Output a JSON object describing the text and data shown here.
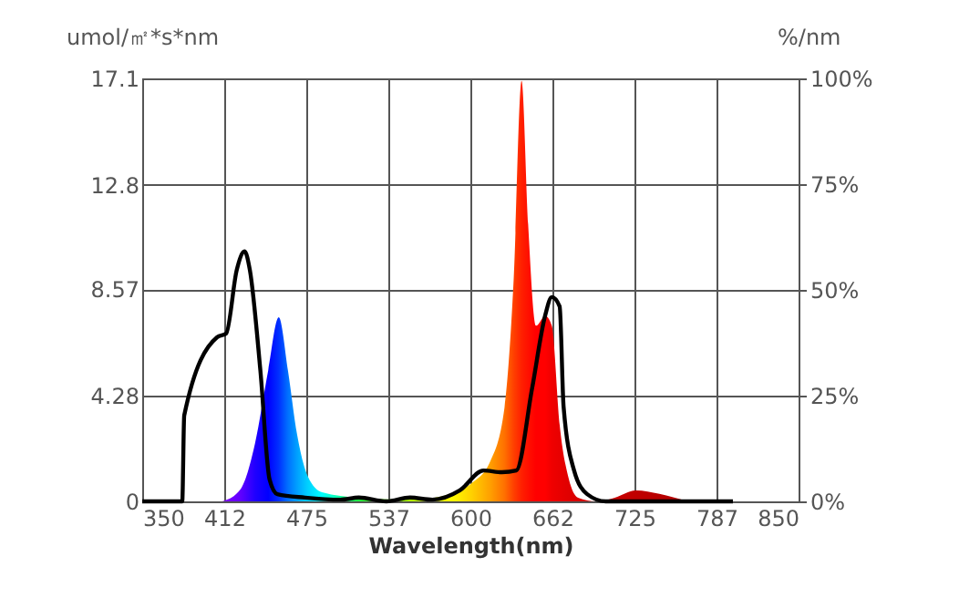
{
  "chart_data": {
    "type": "area",
    "xlabel": "Wavelength(nm)",
    "ylabel": "umol/㎡*s*nm",
    "y2label": "%/nm",
    "xlim": [
      350,
      850
    ],
    "xticks": [
      350,
      {
        "value": 412.5,
        "label": "412"
      },
      475,
      {
        "value": 537.5,
        "label": "537"
      },
      600,
      {
        "value": 662.5,
        "label": "662"
      },
      725,
      {
        "value": 787.5,
        "label": "787"
      },
      850
    ],
    "ylim": [
      0,
      17.1
    ],
    "yticks": [
      0,
      4.28,
      8.57,
      12.8,
      17.1
    ],
    "y2lim": [
      0,
      100
    ],
    "y2ticks": [
      {
        "value": 0,
        "label": "0%"
      },
      {
        "value": 25,
        "label": "25%"
      },
      {
        "value": 50,
        "label": "50%"
      },
      {
        "value": 75,
        "label": "75%"
      },
      {
        "value": 100,
        "label": "100%"
      }
    ],
    "grid": true,
    "series": [
      {
        "x": [
          411,
          425,
          436,
          446,
          454,
          461,
          468,
          476,
          487,
          515,
          557,
          585,
          601,
          615,
          626,
          633,
          639,
          644,
          650,
          657,
          662,
          668,
          675,
          682,
          696,
          710,
          726,
          744,
          765
        ],
        "values": [
          0,
          0.5,
          2.36,
          5.3,
          7.44,
          5.3,
          2.7,
          1.03,
          0.37,
          0.15,
          0.07,
          0.3,
          0.74,
          1.6,
          3.8,
          9.0,
          17.0,
          11.2,
          7.1,
          7.5,
          7.1,
          3.1,
          0.9,
          0.15,
          0,
          0.15,
          0.44,
          0.3,
          0
        ],
        "colors": [
          "#8000ff",
          "#6000ff",
          "#2000ff",
          "#0000ff",
          "#0030ff",
          "#0070ff",
          "#00a0ff",
          "#00d0ff",
          "#00ffff",
          "#20ff40",
          "#c0ff00",
          "#ffff00",
          "#ffd000",
          "#ffa000",
          "#ff7000",
          "#ff4000",
          "#ff2000",
          "#ff1000",
          "#ff0000",
          "#ff0000",
          "#f00000",
          "#e80000",
          "#e00000",
          "#d80000",
          "#d00000",
          "#c80000",
          "#c00000",
          "#b80000",
          "#b00000"
        ]
      },
      {
        "type": "line",
        "axis": "y2",
        "color": "#000000",
        "x": [
          350,
          380.5,
          382,
          407,
          414,
          422,
          428,
          432,
          440,
          447,
          453,
          474,
          501,
          515,
          536,
          554,
          571,
          592,
          610,
          624,
          635,
          647,
          657,
          662,
          668,
          671,
          679,
          689,
          703,
          800
        ],
        "values": [
          0,
          0,
          20.3,
          38.8,
          39.7,
          54.7,
          59.1,
          54.7,
          31,
          5.2,
          1.7,
          0.9,
          0.4,
          0.9,
          0,
          0.9,
          0.4,
          2.6,
          7.3,
          6.9,
          7.3,
          26.7,
          44,
          48.3,
          46.1,
          22.4,
          7.3,
          1.7,
          0,
          0
        ]
      }
    ]
  }
}
